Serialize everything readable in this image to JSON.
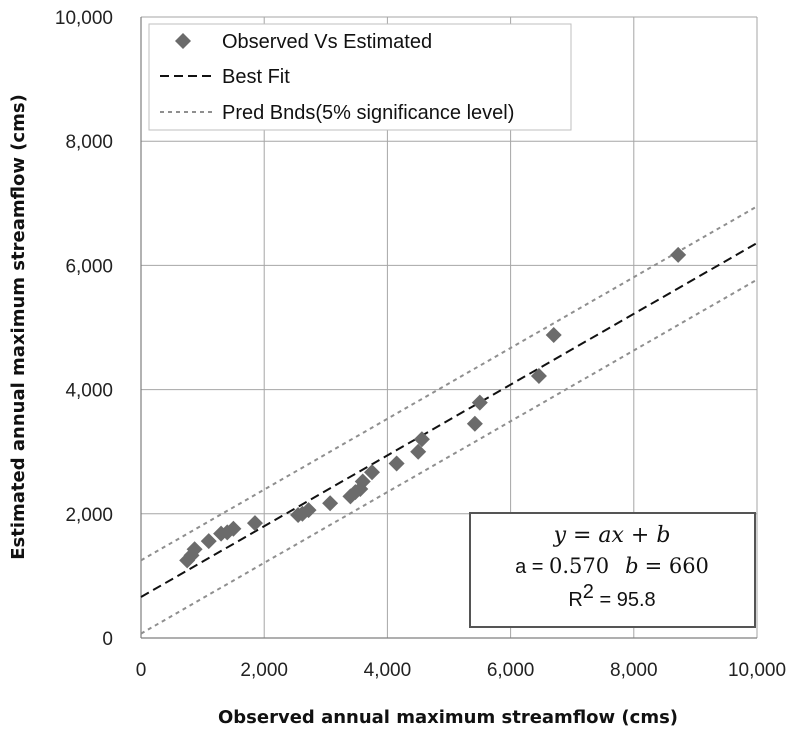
{
  "chart_data": {
    "type": "scatter",
    "xlabel": "Observed annual maximum streamflow (cms)",
    "ylabel": "Estimated annual maximum streamflow (cms)",
    "xlim": [
      0,
      10000
    ],
    "ylim": [
      0,
      10000
    ],
    "xticks": [
      0,
      2000,
      4000,
      6000,
      8000,
      10000
    ],
    "yticks": [
      0,
      2000,
      4000,
      6000,
      8000,
      10000
    ],
    "xtick_labels": [
      "0",
      "2,000",
      "4,000",
      "6,000",
      "8,000",
      "10,000"
    ],
    "ytick_labels": [
      "0",
      "2,000",
      "4,000",
      "6,000",
      "8,000",
      "10,000"
    ],
    "grid": true,
    "legend_position": "top-left",
    "series": [
      {
        "name": "Observed Vs Estimated",
        "kind": "points",
        "marker": "diamond",
        "color": "#6b6b6b",
        "x": [
          750,
          820,
          870,
          1100,
          1300,
          1400,
          1500,
          1850,
          2550,
          2620,
          2720,
          3070,
          3400,
          3480,
          3560,
          3600,
          3750,
          4150,
          4500,
          4560,
          5420,
          5500,
          6460,
          6700,
          8720
        ],
        "y": [
          1250,
          1330,
          1430,
          1560,
          1680,
          1700,
          1760,
          1850,
          1980,
          2000,
          2060,
          2170,
          2280,
          2350,
          2400,
          2520,
          2670,
          2810,
          3000,
          3200,
          3450,
          3790,
          4220,
          4880,
          6170
        ]
      },
      {
        "name": "Best Fit",
        "kind": "line",
        "style": "long-dash",
        "color": "#111111",
        "x": [
          0,
          10000
        ],
        "y": [
          660,
          6360
        ]
      },
      {
        "name": "Pred Bnds(5% significance level)",
        "kind": "bounds",
        "style": "short-dash",
        "color": "#8f8f8f",
        "upper": {
          "x": [
            0,
            10000
          ],
          "y": [
            1250,
            6950
          ]
        },
        "lower": {
          "x": [
            0,
            10000
          ],
          "y": [
            70,
            5770
          ]
        }
      }
    ],
    "annotation": {
      "equation": "y = ax + b",
      "a_label": "a = ",
      "a_value": "0.570",
      "b_var": "b",
      "b_value": "= 660",
      "r2_label": "R",
      "r2_sup": "2",
      "r2_value": " = 95.8"
    }
  }
}
